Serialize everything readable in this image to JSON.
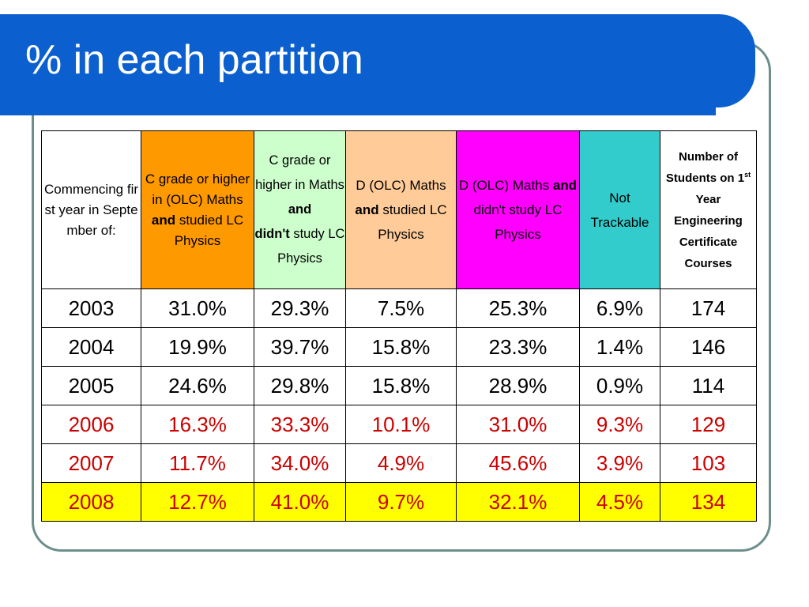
{
  "slide": {
    "title": "% in each partition"
  },
  "colors": {
    "title_bar": "#0b5fcf",
    "col1_header": "#ffffff",
    "col2_header": "#ff9900",
    "col3_header": "#ccffcc",
    "col4_header": "#ffcc99",
    "col5_header": "#ff00ff",
    "col6_header": "#33cccc",
    "col7_header": "#ffffff",
    "highlight_row": "#ffff00",
    "red_text": "#cc0000"
  },
  "table": {
    "headers": {
      "h1": "Commencing  first year in September of:",
      "h2_pre": "C grade or higher in (OLC) Maths ",
      "h2_bold": "and",
      "h2_post": " studied LC Physics",
      "h3_pre": "C grade or higher in Maths ",
      "h3_bold1": "and",
      "h3_bold2": "didn't",
      "h3_post": " study LC Physics",
      "h4_pre": "D (OLC) Maths ",
      "h4_bold": "and",
      "h4_post": " studied LC Physics",
      "h5_pre": "D (OLC) Maths ",
      "h5_bold": "and",
      "h5_post": " didn't study LC Physics",
      "h6": "Not Trackable",
      "h7_pre": "Number of Students on 1",
      "h7_sup": "st",
      "h7_post": " Year Engineering Certificate Courses"
    },
    "rows": [
      [
        "2003",
        "31.0%",
        "29.3%",
        "7.5%",
        "25.3%",
        "6.9%",
        "174"
      ],
      [
        "2004",
        "19.9%",
        "39.7%",
        "15.8%",
        "23.3%",
        "1.4%",
        "146"
      ],
      [
        "2005",
        "24.6%",
        "29.8%",
        "15.8%",
        "28.9%",
        "0.9%",
        "114"
      ],
      [
        "2006",
        "16.3%",
        "33.3%",
        "10.1%",
        "31.0%",
        "9.3%",
        "129"
      ],
      [
        "2007",
        "11.7%",
        "34.0%",
        "4.9%",
        "45.6%",
        "3.9%",
        "103"
      ],
      [
        "2008",
        "12.7%",
        "41.0%",
        "9.7%",
        "32.1%",
        "4.5%",
        "134"
      ]
    ]
  }
}
